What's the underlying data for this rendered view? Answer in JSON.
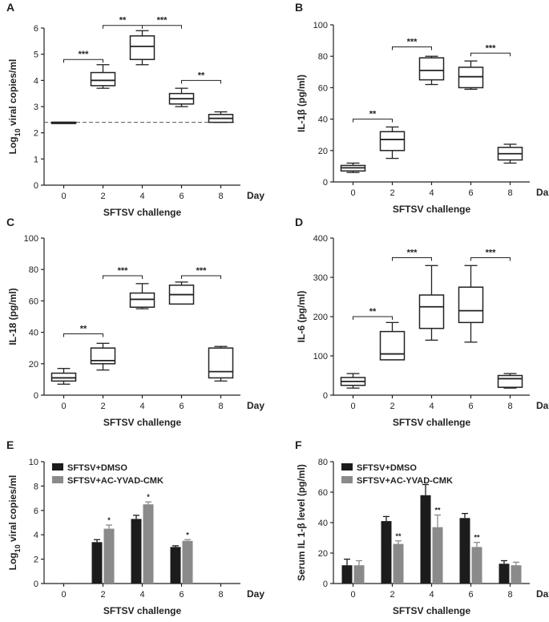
{
  "colors": {
    "ink": "#222222",
    "dmso": "#1c1c1c",
    "yvad": "#8a8a8a",
    "dashed": "#555555"
  },
  "chart_data": [
    {
      "panel": "A",
      "type": "box",
      "xlabel": "SFTSV challenge",
      "x_end_label": "Day",
      "ylabel_parts": [
        "Log",
        "10",
        " viral copies/ml"
      ],
      "ylim": [
        0,
        6
      ],
      "yticks": [
        "0",
        "1",
        "2",
        "3",
        "4",
        "5",
        "6"
      ],
      "categories": [
        "0",
        "2",
        "4",
        "6",
        "8"
      ],
      "boxes": [
        {
          "x": "0",
          "min": 2.4,
          "q1": 2.4,
          "median": 2.4,
          "q3": 2.4,
          "max": 2.4
        },
        {
          "x": "2",
          "min": 3.7,
          "q1": 3.8,
          "median": 4.0,
          "q3": 4.3,
          "max": 4.6
        },
        {
          "x": "4",
          "min": 4.6,
          "q1": 4.8,
          "median": 5.3,
          "q3": 5.7,
          "max": 5.9
        },
        {
          "x": "6",
          "min": 3.0,
          "q1": 3.1,
          "median": 3.3,
          "q3": 3.5,
          "max": 3.7
        },
        {
          "x": "8",
          "min": 2.4,
          "q1": 2.4,
          "median": 2.55,
          "q3": 2.7,
          "max": 2.8
        }
      ],
      "reference_line": 2.4,
      "significance": [
        {
          "from": "0",
          "to": "2",
          "y": 4.8,
          "label": "***"
        },
        {
          "from": "2",
          "to": "4",
          "y": 6.1,
          "label": "**"
        },
        {
          "from": "4",
          "to": "6",
          "y": 6.1,
          "label": "***"
        },
        {
          "from": "6",
          "to": "8",
          "y": 4.0,
          "label": "**"
        }
      ]
    },
    {
      "panel": "B",
      "type": "box",
      "xlabel": "SFTSV challenge",
      "x_end_label": "Day",
      "ylabel_parts": [
        "IL-1β (pg/ml)"
      ],
      "ylim": [
        0,
        100
      ],
      "yticks": [
        "0",
        "20",
        "40",
        "60",
        "80",
        "100"
      ],
      "categories": [
        "0",
        "2",
        "4",
        "6",
        "8"
      ],
      "boxes": [
        {
          "x": "0",
          "min": 6,
          "q1": 7,
          "median": 9,
          "q3": 10.5,
          "max": 12
        },
        {
          "x": "2",
          "min": 15,
          "q1": 20,
          "median": 27,
          "q3": 32,
          "max": 35
        },
        {
          "x": "4",
          "min": 62,
          "q1": 65,
          "median": 71,
          "q3": 79,
          "max": 80
        },
        {
          "x": "6",
          "min": 59,
          "q1": 60,
          "median": 67,
          "q3": 73,
          "max": 77
        },
        {
          "x": "8",
          "min": 12,
          "q1": 14,
          "median": 18,
          "q3": 22,
          "max": 24
        }
      ],
      "significance": [
        {
          "from": "0",
          "to": "2",
          "y": 40,
          "label": "**"
        },
        {
          "from": "2",
          "to": "4",
          "y": 86,
          "label": "***"
        },
        {
          "from": "6",
          "to": "8",
          "y": 82,
          "label": "***"
        }
      ]
    },
    {
      "panel": "C",
      "type": "box",
      "xlabel": "SFTSV challenge",
      "x_end_label": "Day",
      "ylabel_parts": [
        "IL-18 (pg/ml)"
      ],
      "ylim": [
        0,
        100
      ],
      "yticks": [
        "0",
        "20",
        "40",
        "60",
        "80",
        "100"
      ],
      "categories": [
        "0",
        "2",
        "4",
        "6",
        "8"
      ],
      "boxes": [
        {
          "x": "0",
          "min": 7,
          "q1": 9,
          "median": 11,
          "q3": 14,
          "max": 17
        },
        {
          "x": "2",
          "min": 16,
          "q1": 20,
          "median": 22,
          "q3": 30,
          "max": 33
        },
        {
          "x": "4",
          "min": 55,
          "q1": 56,
          "median": 61,
          "q3": 65,
          "max": 71
        },
        {
          "x": "6",
          "min": 58,
          "q1": 58,
          "median": 64,
          "q3": 70,
          "max": 72
        },
        {
          "x": "8",
          "min": 9,
          "q1": 11,
          "median": 15,
          "q3": 30,
          "max": 31
        }
      ],
      "significance": [
        {
          "from": "0",
          "to": "2",
          "y": 39,
          "label": "**"
        },
        {
          "from": "2",
          "to": "4",
          "y": 76,
          "label": "***"
        },
        {
          "from": "6",
          "to": "8",
          "y": 76,
          "label": "***"
        }
      ]
    },
    {
      "panel": "D",
      "type": "box",
      "xlabel": "SFTSV challenge",
      "x_end_label": "Day",
      "ylabel_parts": [
        "IL-6 (pg/ml)"
      ],
      "ylim": [
        0,
        400
      ],
      "yticks": [
        "0",
        "100",
        "200",
        "300",
        "400"
      ],
      "categories": [
        "0",
        "2",
        "4",
        "6",
        "8"
      ],
      "boxes": [
        {
          "x": "0",
          "min": 18,
          "q1": 25,
          "median": 35,
          "q3": 45,
          "max": 55
        },
        {
          "x": "2",
          "min": 90,
          "q1": 90,
          "median": 105,
          "q3": 162,
          "max": 185
        },
        {
          "x": "4",
          "min": 140,
          "q1": 170,
          "median": 225,
          "q3": 255,
          "max": 330
        },
        {
          "x": "6",
          "min": 135,
          "q1": 185,
          "median": 215,
          "q3": 275,
          "max": 330
        },
        {
          "x": "8",
          "min": 18,
          "q1": 20,
          "median": 42,
          "q3": 50,
          "max": 55
        }
      ],
      "significance": [
        {
          "from": "0",
          "to": "2",
          "y": 200,
          "label": "**"
        },
        {
          "from": "2",
          "to": "4",
          "y": 350,
          "label": "***"
        },
        {
          "from": "6",
          "to": "8",
          "y": 350,
          "label": "***"
        }
      ]
    },
    {
      "panel": "E",
      "type": "bar",
      "xlabel": "SFTSV challenge",
      "x_end_label": "Day",
      "ylabel_parts": [
        "Log",
        "10",
        " viral copies/ml"
      ],
      "ylim": [
        0,
        10
      ],
      "yticks": [
        "0",
        "2",
        "4",
        "6",
        "8",
        "10"
      ],
      "categories": [
        "0",
        "2",
        "4",
        "6",
        "8"
      ],
      "series": [
        {
          "name": "SFTSV+DMSO",
          "color": "#1c1c1c",
          "values": [
            0,
            3.4,
            5.3,
            3.0,
            0
          ],
          "errors": [
            0,
            0.2,
            0.3,
            0.1,
            0
          ],
          "marks": [
            "",
            "",
            "",
            "",
            ""
          ]
        },
        {
          "name": "SFTSV+AC-YVAD-CMK",
          "color": "#8a8a8a",
          "values": [
            0,
            4.5,
            6.5,
            3.5,
            0
          ],
          "errors": [
            0,
            0.3,
            0.2,
            0.1,
            0
          ],
          "marks": [
            "",
            "*",
            "*",
            "*",
            ""
          ]
        }
      ]
    },
    {
      "panel": "F",
      "type": "bar",
      "xlabel": "SFTSV challenge",
      "x_end_label": "Day",
      "ylabel_parts": [
        "Serum IL 1-β  level (pg/ml)"
      ],
      "ylim": [
        0,
        80
      ],
      "yticks": [
        "0",
        "20",
        "40",
        "60",
        "80"
      ],
      "categories": [
        "0",
        "2",
        "4",
        "6",
        "8"
      ],
      "series": [
        {
          "name": "SFTSV+DMSO",
          "color": "#1c1c1c",
          "values": [
            12,
            41,
            58,
            43,
            13
          ],
          "errors": [
            4,
            3,
            7,
            3,
            2
          ],
          "marks": [
            "",
            "",
            "",
            "",
            ""
          ]
        },
        {
          "name": "SFTSV+AC-YVAD-CMK",
          "color": "#8a8a8a",
          "values": [
            12,
            26,
            37,
            24,
            12
          ],
          "errors": [
            3,
            2,
            8,
            3,
            2
          ],
          "marks": [
            "",
            "**",
            "**",
            "**",
            ""
          ]
        }
      ]
    }
  ]
}
